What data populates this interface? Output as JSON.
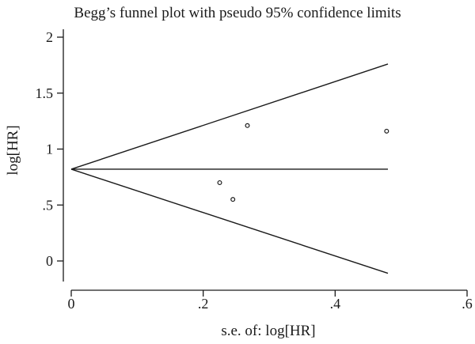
{
  "chart_data": {
    "type": "scatter",
    "title": "Begg’s funnel plot with pseudo 95% confidence limits",
    "xlabel": "s.e. of: log[HR]",
    "ylabel": "log[HR]",
    "xlim": [
      0,
      0.6
    ],
    "ylim": [
      -0.1,
      2.0
    ],
    "x_ticks": [
      {
        "value": 0,
        "label": "0"
      },
      {
        "value": 0.2,
        "label": ".2"
      },
      {
        "value": 0.4,
        "label": ".4"
      },
      {
        "value": 0.6,
        "label": ".6"
      }
    ],
    "y_ticks": [
      {
        "value": 0,
        "label": "0"
      },
      {
        "value": 0.5,
        "label": ".5"
      },
      {
        "value": 1,
        "label": "1"
      },
      {
        "value": 1.5,
        "label": "1.5"
      },
      {
        "value": 2,
        "label": "2"
      }
    ],
    "pooled_estimate": 0.82,
    "funnel": {
      "se_max": 0.48,
      "upper_at_se_max": 1.76,
      "lower_at_se_max": -0.11
    },
    "points": [
      {
        "x": 0.225,
        "y": 0.7
      },
      {
        "x": 0.245,
        "y": 0.55
      },
      {
        "x": 0.267,
        "y": 1.21
      },
      {
        "x": 0.478,
        "y": 1.16
      }
    ],
    "grid": false,
    "legend": "none"
  }
}
